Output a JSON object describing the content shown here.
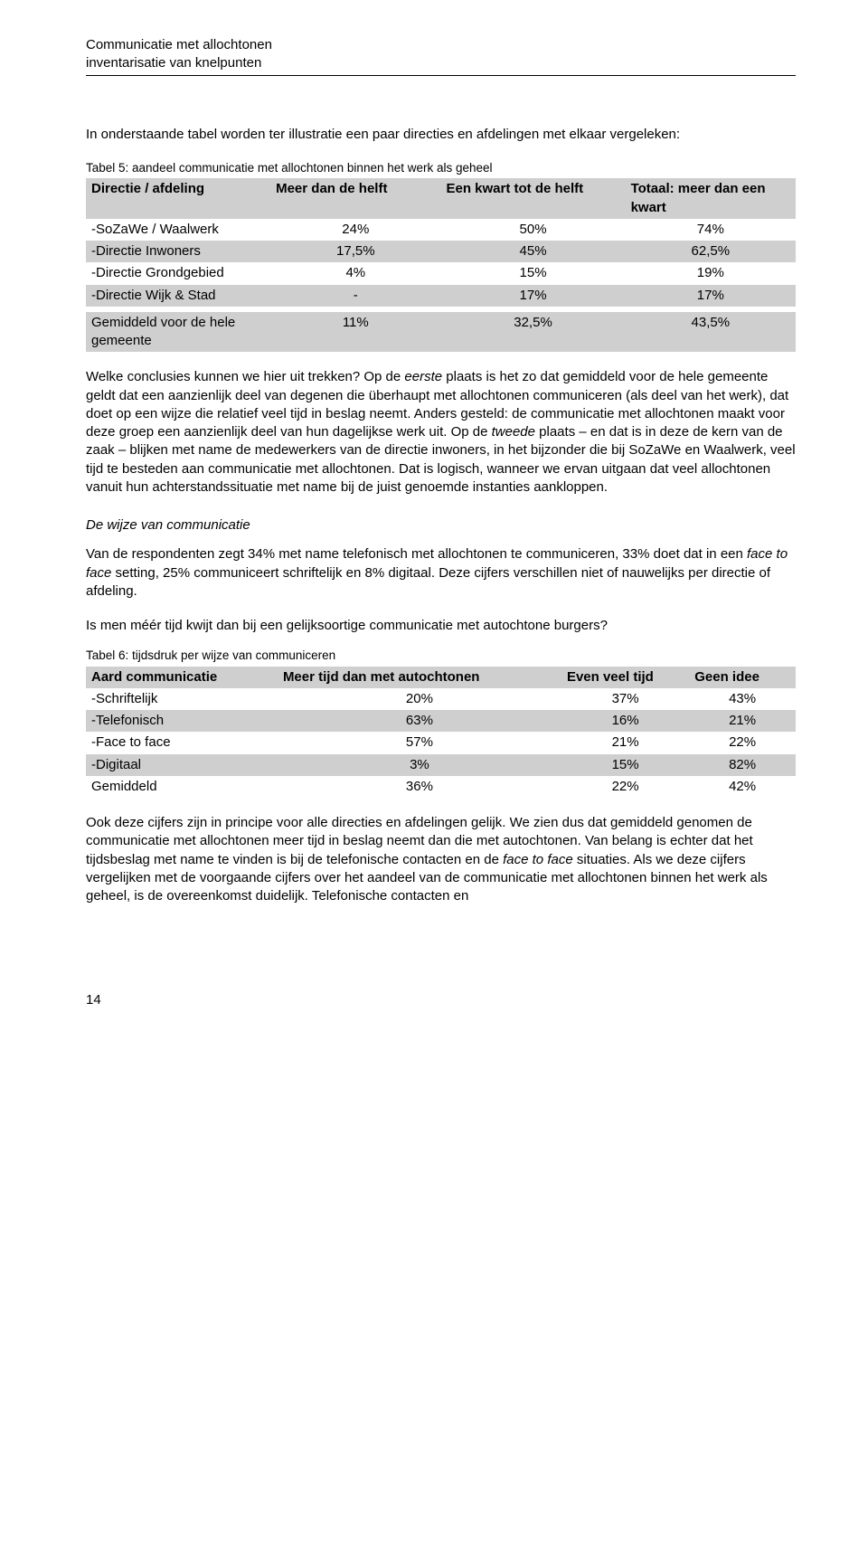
{
  "header": {
    "line1": "Communicatie met allochtonen",
    "line2": "inventarisatie van knelpunten"
  },
  "intro": "In onderstaande tabel worden ter illustratie een paar directies en afdelingen met elkaar vergeleken:",
  "table5": {
    "caption": "Tabel 5: aandeel communicatie met allochtonen binnen het werk als geheel",
    "headers": [
      "Directie / afdeling",
      "Meer dan de helft",
      "Een kwart tot de helft",
      "Totaal: meer dan een kwart"
    ],
    "rows": [
      {
        "label": "-SoZaWe / Waalwerk",
        "c1": "24%",
        "c2": "50%",
        "c3": "74%"
      },
      {
        "label": "-Directie Inwoners",
        "c1": "17,5%",
        "c2": "45%",
        "c3": "62,5%"
      },
      {
        "label": "-Directie Grondgebied",
        "c1": "4%",
        "c2": "15%",
        "c3": "19%"
      },
      {
        "label": "-Directie Wijk & Stad",
        "c1": "-",
        "c2": "17%",
        "c3": "17%"
      }
    ],
    "summary": {
      "label": "Gemiddeld voor de hele gemeente",
      "c1": "11%",
      "c2": "32,5%",
      "c3": "43,5%"
    }
  },
  "para1": {
    "pre": "Welke conclusies kunnen we hier uit trekken? Op de ",
    "em1": "eerste",
    "mid1": " plaats is het zo dat gemiddeld voor de hele gemeente geldt dat een aanzienlijk deel van degenen die überhaupt met allochtonen communiceren (als deel van het werk), dat doet op een wijze die relatief veel tijd in beslag neemt. Anders gesteld: de communicatie met allochtonen maakt voor deze groep een aanzienlijk deel van hun dagelijkse werk uit. Op de ",
    "em2": "tweede",
    "post": " plaats – en dat is in deze de kern van de zaak – blijken met name de medewerkers van de directie inwoners, in het bijzonder die bij SoZaWe en Waalwerk, veel tijd te besteden aan communicatie met allochtonen. Dat is logisch, wanneer we ervan uitgaan dat veel allochtonen vanuit hun achterstandssituatie met name bij de juist genoemde instanties aankloppen."
  },
  "subhead": "De wijze van communicatie",
  "para2": {
    "pre": "Van de respondenten zegt 34% met name telefonisch met allochtonen te communiceren, 33% doet dat in een ",
    "em": "face to face",
    "post": " setting, 25% communiceert schriftelijk en 8% digitaal. Deze cijfers verschillen niet of nauwelijks per directie of afdeling."
  },
  "question": "Is men méér tijd kwijt dan bij een gelijksoortige communicatie met autochtone burgers?",
  "table6": {
    "caption": "Tabel 6: tijdsdruk per wijze van communiceren",
    "headers": [
      "Aard communicatie",
      "Meer tijd dan met autochtonen",
      "Even veel tijd",
      "Geen idee"
    ],
    "rows": [
      {
        "label": "-Schriftelijk",
        "c1": "20%",
        "c2": "37%",
        "c3": "43%"
      },
      {
        "label": "-Telefonisch",
        "c1": "63%",
        "c2": "16%",
        "c3": "21%"
      },
      {
        "label": "-Face to face",
        "c1": "57%",
        "c2": "21%",
        "c3": "22%"
      },
      {
        "label": "-Digitaal",
        "c1": "3%",
        "c2": "15%",
        "c3": "82%"
      },
      {
        "label": "Gemiddeld",
        "c1": "36%",
        "c2": "22%",
        "c3": "42%"
      }
    ]
  },
  "para3": {
    "pre": "Ook deze cijfers zijn in principe voor alle directies en afdelingen gelijk. We zien dus dat gemiddeld genomen de communicatie met allochtonen meer tijd in beslag neemt dan die met autochtonen. Van belang is echter dat het tijdsbeslag met name te vinden is bij de telefonische contacten en de ",
    "em": "face to face",
    "post": " situaties. Als we deze cijfers vergelijken met de voorgaande cijfers over het aandeel van de communicatie met allochtonen binnen het werk als geheel, is de overeenkomst duidelijk. Telefonische contacten en"
  },
  "pageNumber": "14"
}
